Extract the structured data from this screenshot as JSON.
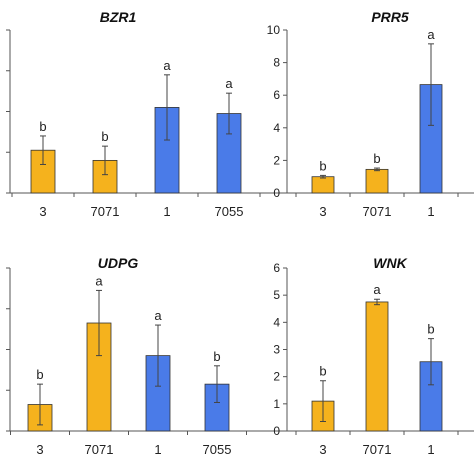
{
  "colors": {
    "yellow": "#f5b21d",
    "blue": "#4a7be8",
    "error": "#444444"
  },
  "chart_data": [
    {
      "type": "bar",
      "title": "BZR1",
      "categories": [
        "3",
        "7071",
        "1",
        "7055"
      ],
      "values": [
        2.1,
        1.6,
        4.2,
        3.9
      ],
      "errors": [
        0.7,
        0.7,
        1.6,
        1.0
      ],
      "labels": [
        "b",
        "b",
        "a",
        "a"
      ],
      "bar_colors": [
        "yellow",
        "yellow",
        "blue",
        "blue"
      ],
      "ylim": [
        0,
        8
      ],
      "yticks": [],
      "grid": false
    },
    {
      "type": "bar",
      "title": "PRR5",
      "categories": [
        "3",
        "7071",
        "1"
      ],
      "values": [
        1.0,
        1.45,
        6.65
      ],
      "errors": [
        0.08,
        0.08,
        2.5
      ],
      "labels": [
        "b",
        "b",
        "a"
      ],
      "bar_colors": [
        "yellow",
        "yellow",
        "blue"
      ],
      "ylim": [
        0,
        10
      ],
      "yticks": [
        "0",
        "2",
        "4",
        "6",
        "8",
        "10"
      ],
      "grid": false
    },
    {
      "type": "bar",
      "title": "UDPG",
      "categories": [
        "3",
        "7071",
        "1",
        "7055"
      ],
      "values": [
        0.65,
        2.65,
        1.85,
        1.15
      ],
      "errors": [
        0.5,
        0.8,
        0.75,
        0.45
      ],
      "labels": [
        "b",
        "a",
        "a",
        "b"
      ],
      "bar_colors": [
        "yellow",
        "yellow",
        "blue",
        "blue"
      ],
      "ylim": [
        0,
        4
      ],
      "yticks": [],
      "grid": false
    },
    {
      "type": "bar",
      "title": "WNK",
      "categories": [
        "3",
        "7071",
        "1"
      ],
      "values": [
        1.1,
        4.75,
        2.55
      ],
      "errors": [
        0.75,
        0.1,
        0.85
      ],
      "labels": [
        "b",
        "a",
        "b"
      ],
      "bar_colors": [
        "yellow",
        "yellow",
        "blue"
      ],
      "ylim": [
        0,
        6
      ],
      "yticks": [
        "0",
        "1",
        "2",
        "3",
        "4",
        "5",
        "6"
      ],
      "grid": false
    }
  ]
}
